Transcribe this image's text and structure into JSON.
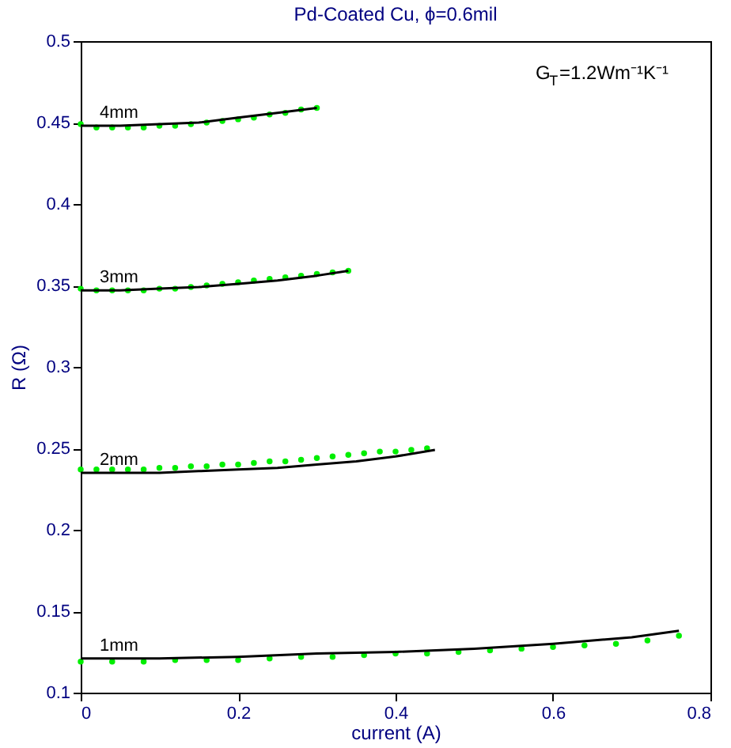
{
  "chart_data": {
    "type": "line",
    "title": "Pd-Coated Cu, ϕ=0.6mil",
    "xlabel": "current (A)",
    "ylabel": "R (Ω)",
    "xlim": [
      0,
      0.8
    ],
    "xticks": [
      0,
      0.2,
      0.4,
      0.6,
      0.8
    ],
    "ylim": [
      0.1,
      0.5
    ],
    "yticks": [
      0.1,
      0.15,
      0.2,
      0.25,
      0.3,
      0.35,
      0.4,
      0.45,
      0.5
    ],
    "grid": false,
    "series": [
      {
        "type": "scatter",
        "marker": "circle",
        "color": "#00ee00",
        "x": [
          0,
          0.02,
          0.04,
          0.06,
          0.08,
          0.1,
          0.12,
          0.14,
          0.16,
          0.18,
          0.2,
          0.22,
          0.24,
          0.26,
          0.28,
          0.3
        ],
        "values": [
          0.449,
          0.447,
          0.447,
          0.447,
          0.447,
          0.448,
          0.448,
          0.449,
          0.45,
          0.451,
          0.452,
          0.453,
          0.455,
          0.456,
          0.458,
          0.459
        ]
      },
      {
        "type": "line",
        "name": "4mm",
        "color": "#000000",
        "x": [
          0,
          0.05,
          0.1,
          0.15,
          0.2,
          0.25,
          0.3
        ],
        "values": [
          0.448,
          0.448,
          0.449,
          0.45,
          0.453,
          0.456,
          0.459
        ]
      },
      {
        "type": "scatter",
        "marker": "circle",
        "color": "#00ee00",
        "x": [
          0,
          0.02,
          0.04,
          0.06,
          0.08,
          0.1,
          0.12,
          0.14,
          0.16,
          0.18,
          0.2,
          0.22,
          0.24,
          0.26,
          0.28,
          0.3,
          0.32,
          0.34
        ],
        "values": [
          0.348,
          0.347,
          0.347,
          0.347,
          0.347,
          0.348,
          0.348,
          0.349,
          0.35,
          0.351,
          0.352,
          0.353,
          0.354,
          0.355,
          0.356,
          0.357,
          0.358,
          0.359
        ]
      },
      {
        "type": "line",
        "name": "3mm",
        "color": "#000000",
        "x": [
          0,
          0.05,
          0.1,
          0.15,
          0.2,
          0.25,
          0.3,
          0.34
        ],
        "values": [
          0.347,
          0.347,
          0.348,
          0.349,
          0.351,
          0.353,
          0.356,
          0.359
        ]
      },
      {
        "type": "scatter",
        "marker": "circle",
        "color": "#00ee00",
        "x": [
          0,
          0.02,
          0.04,
          0.06,
          0.08,
          0.1,
          0.12,
          0.14,
          0.16,
          0.18,
          0.2,
          0.22,
          0.24,
          0.26,
          0.28,
          0.3,
          0.32,
          0.34,
          0.36,
          0.38,
          0.4,
          0.42,
          0.44
        ],
        "values": [
          0.237,
          0.237,
          0.237,
          0.237,
          0.237,
          0.238,
          0.238,
          0.239,
          0.239,
          0.24,
          0.24,
          0.241,
          0.242,
          0.242,
          0.243,
          0.244,
          0.245,
          0.246,
          0.247,
          0.248,
          0.248,
          0.249,
          0.25
        ]
      },
      {
        "type": "line",
        "name": "2mm",
        "color": "#000000",
        "x": [
          0,
          0.05,
          0.1,
          0.15,
          0.2,
          0.25,
          0.3,
          0.35,
          0.4,
          0.45
        ],
        "values": [
          0.235,
          0.235,
          0.235,
          0.236,
          0.237,
          0.238,
          0.24,
          0.242,
          0.245,
          0.249
        ]
      },
      {
        "type": "scatter",
        "marker": "circle",
        "color": "#00ee00",
        "x": [
          0,
          0.04,
          0.08,
          0.12,
          0.16,
          0.2,
          0.24,
          0.28,
          0.32,
          0.36,
          0.4,
          0.44,
          0.48,
          0.52,
          0.56,
          0.6,
          0.64,
          0.68,
          0.72,
          0.76
        ],
        "values": [
          0.119,
          0.119,
          0.119,
          0.12,
          0.12,
          0.12,
          0.121,
          0.122,
          0.122,
          0.123,
          0.124,
          0.124,
          0.125,
          0.126,
          0.127,
          0.128,
          0.129,
          0.13,
          0.132,
          0.135
        ]
      },
      {
        "type": "line",
        "name": "1mm",
        "color": "#000000",
        "x": [
          0,
          0.1,
          0.2,
          0.3,
          0.4,
          0.5,
          0.6,
          0.7,
          0.76
        ],
        "values": [
          0.121,
          0.121,
          0.122,
          0.124,
          0.125,
          0.127,
          0.13,
          0.134,
          0.138
        ]
      }
    ],
    "annotations": [
      "G$_{T}$=1.2Wm⁻¹K⁻¹"
    ]
  }
}
